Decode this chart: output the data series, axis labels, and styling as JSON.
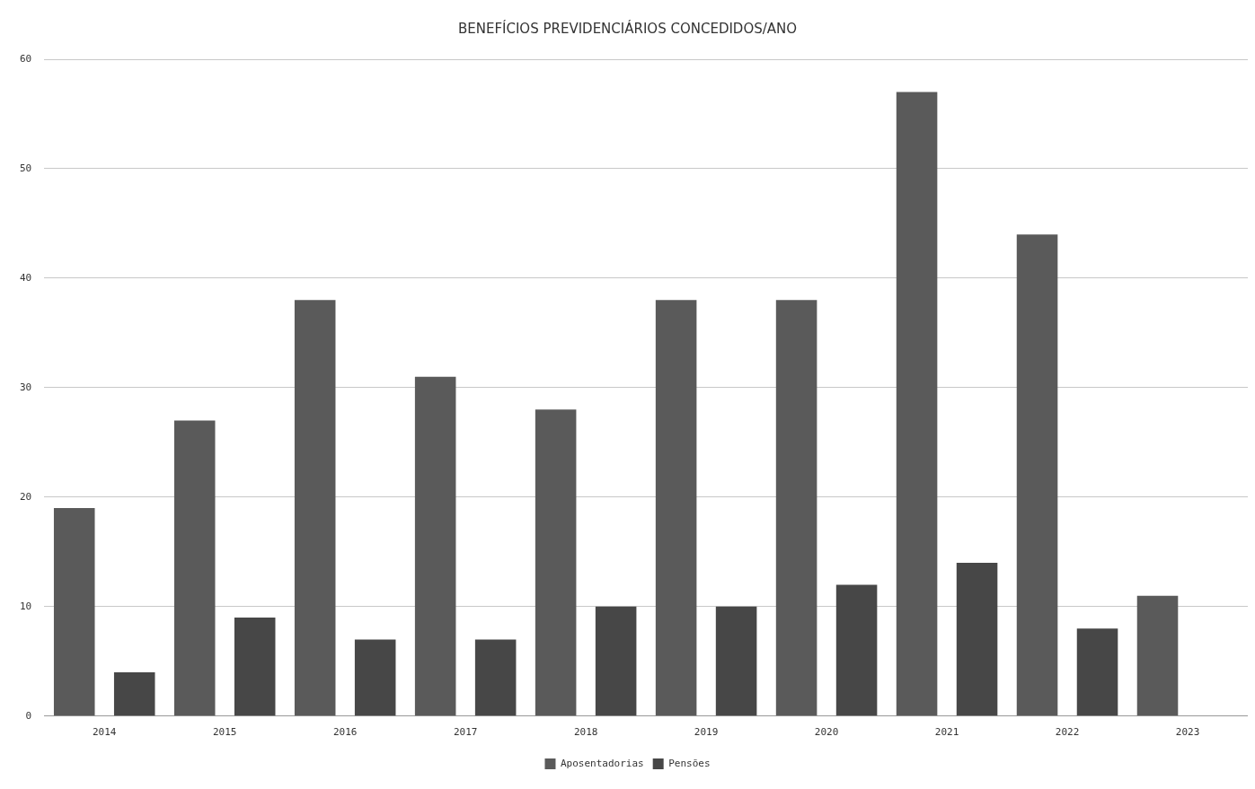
{
  "chart_data": {
    "type": "bar",
    "title": "BENEFÍCIOS PREVIDENCIÁRIOS CONCEDIDOS/ANO",
    "categories": [
      "2014",
      "2015",
      "2016",
      "2017",
      "2018",
      "2019",
      "2020",
      "2021",
      "2022",
      "2023"
    ],
    "series": [
      {
        "name": "Aposentadorias",
        "color": "#5a5a5a",
        "values": [
          19,
          27,
          38,
          31,
          28,
          38,
          38,
          57,
          44,
          11
        ]
      },
      {
        "name": "Pensões",
        "color": "#474747",
        "values": [
          4,
          9,
          7,
          7,
          10,
          10,
          12,
          14,
          8,
          null
        ]
      }
    ],
    "ylim": [
      0,
      60
    ],
    "yticks": [
      0,
      10,
      20,
      30,
      40,
      50,
      60
    ],
    "grid": "y",
    "legend": "bottom"
  }
}
